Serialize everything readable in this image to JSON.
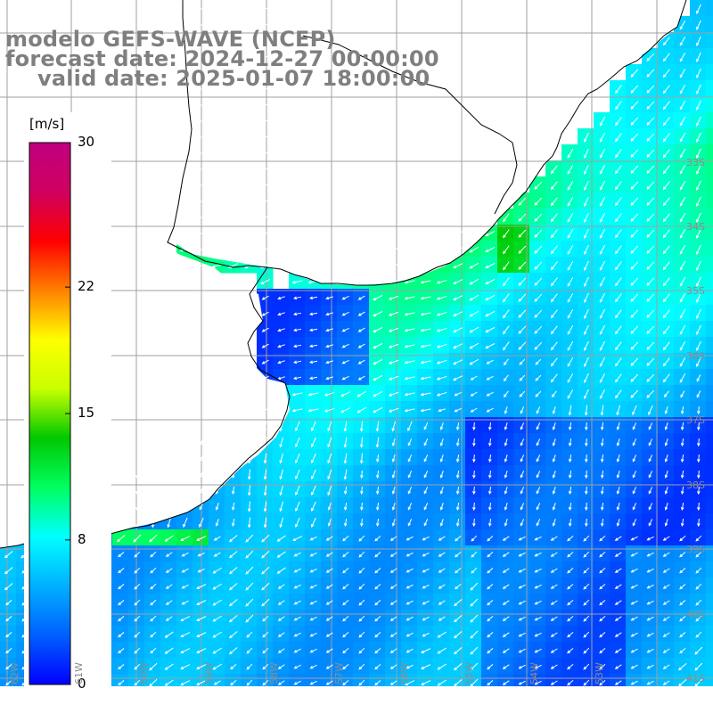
{
  "title": {
    "line1": "modelo GEFS-WAVE (NCEP)",
    "line2": "forecast date: 2024-12-27 00:00:00",
    "line3": "valid date: 2025-01-07 18:00:00"
  },
  "colorbar": {
    "unit": "[m/s]",
    "min": 0,
    "max": 30,
    "ticks": [
      {
        "value": 30,
        "label": "30"
      },
      {
        "value": 22,
        "label": "22"
      },
      {
        "value": 15,
        "label": "15"
      },
      {
        "value": 8,
        "label": "8"
      },
      {
        "value": 0,
        "label": "0"
      }
    ],
    "colors": [
      "#0000ff",
      "#0060ff",
      "#00b0ff",
      "#00ffff",
      "#00ff60",
      "#00c800",
      "#c8ff00",
      "#ffff00",
      "#ff8000",
      "#ff0000",
      "#d00060",
      "#c00080"
    ]
  },
  "map": {
    "variable": "wind speed",
    "land_color": "#ffffff",
    "grid_color": "#a0a0a0",
    "coast_color": "#000000",
    "lat_labels": [
      "33S",
      "34S",
      "35S",
      "36S",
      "37S",
      "38S",
      "39S",
      "40S",
      "41S"
    ],
    "lon_labels": [
      "62W",
      "61W",
      "60W",
      "59W",
      "58W",
      "57W",
      "56W",
      "55W",
      "54W",
      "53W"
    ]
  }
}
